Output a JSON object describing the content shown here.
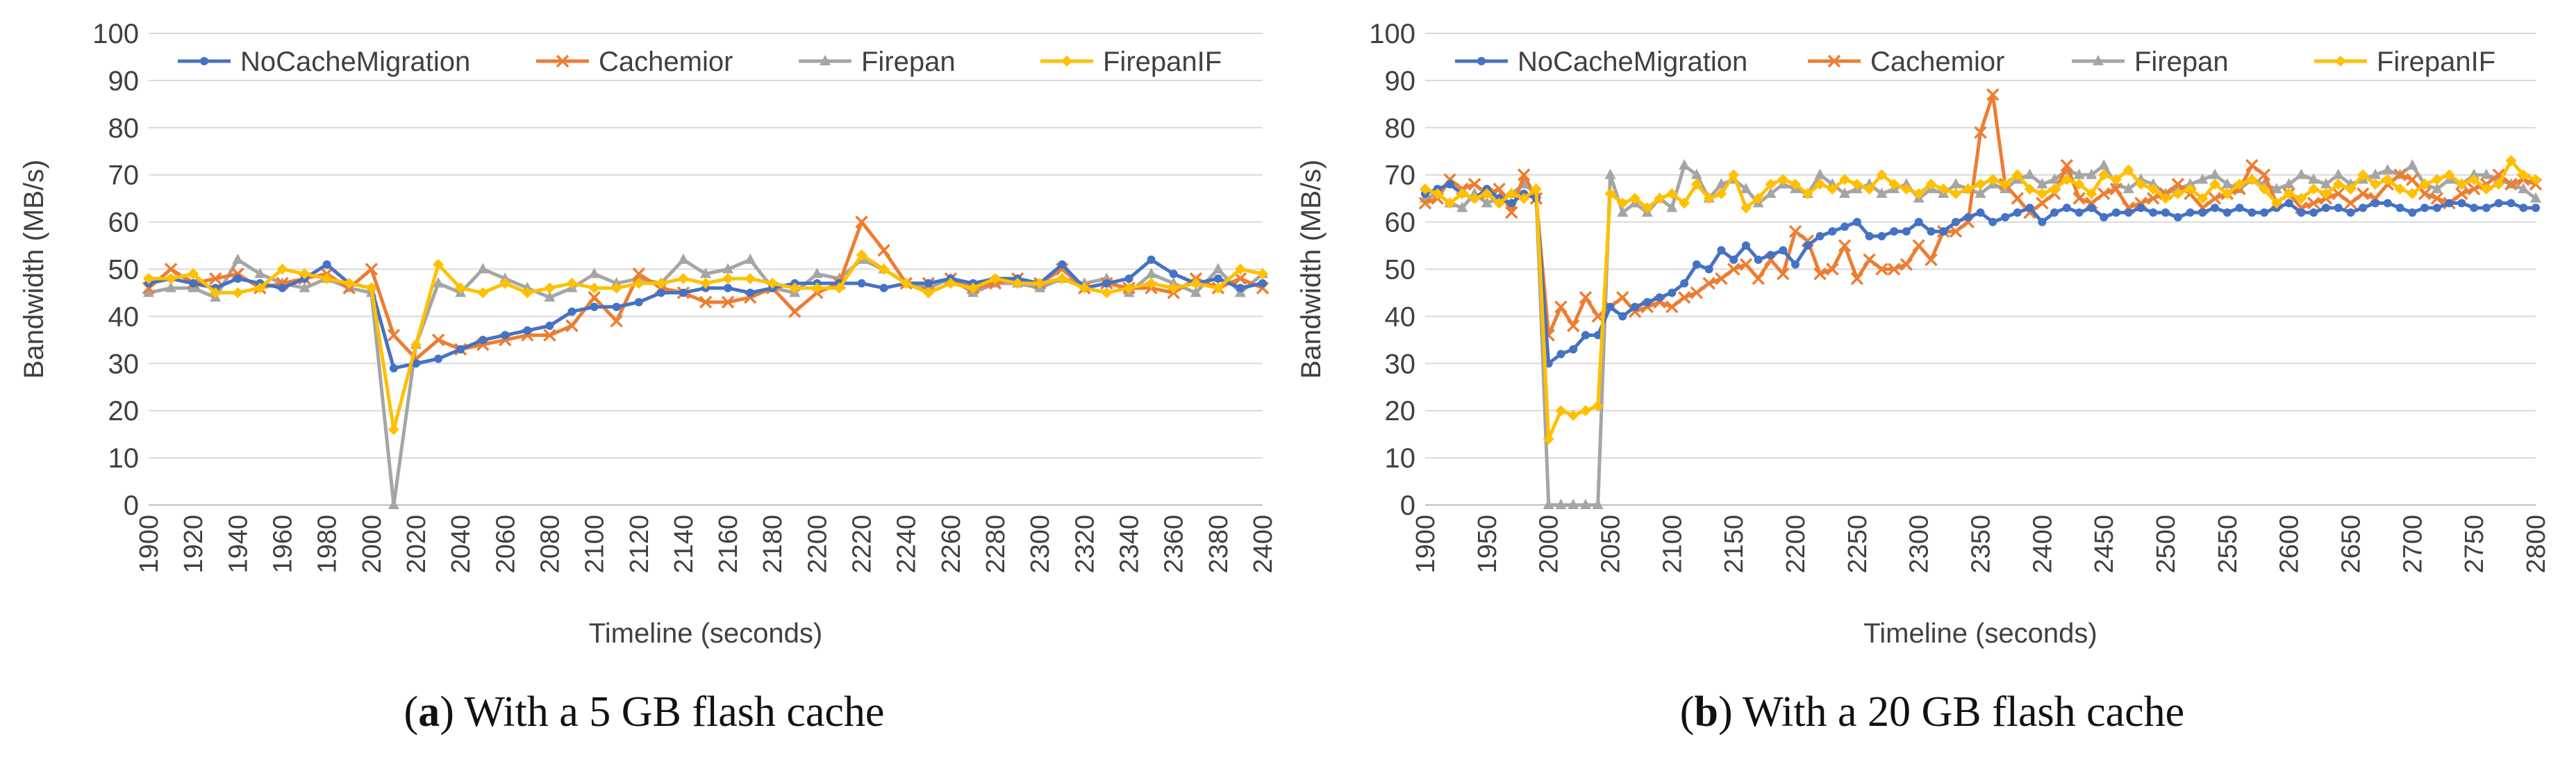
{
  "chart_data": [
    {
      "type": "line",
      "panel_id": "a",
      "caption": {
        "letter": "a",
        "text": "With a 5 GB flash cache"
      },
      "title": "",
      "xlabel": "Timeline (seconds)",
      "ylabel": "Bandwidth (MB/s)",
      "xlim": [
        1900,
        2400
      ],
      "ylim": [
        0,
        100
      ],
      "yticks": [
        "0",
        "10",
        "20",
        "30",
        "40",
        "50",
        "60",
        "70",
        "80",
        "90",
        "100"
      ],
      "xticks": [
        "1900",
        "1920",
        "1940",
        "1960",
        "1980",
        "2000",
        "2020",
        "2040",
        "2060",
        "2080",
        "2100",
        "2120",
        "2140",
        "2160",
        "2180",
        "2200",
        "2220",
        "2240",
        "2260",
        "2280",
        "2300",
        "2320",
        "2340",
        "2360",
        "2380",
        "2400"
      ],
      "grid": "horizontal",
      "legend": "top",
      "x_start": 1900,
      "x_step": 10,
      "series": [
        {
          "name": "NoCacheMigration",
          "color": "#4472C4",
          "marker": "circle",
          "values": [
            47,
            48,
            47,
            46,
            48,
            47,
            46,
            48,
            51,
            47,
            46,
            29,
            30,
            31,
            33,
            35,
            36,
            37,
            38,
            41,
            42,
            42,
            43,
            45,
            45,
            46,
            46,
            45,
            46,
            47,
            47,
            47,
            47,
            46,
            47,
            47,
            48,
            47,
            48,
            48,
            47,
            51,
            46,
            47,
            48,
            52,
            49,
            47,
            48,
            46,
            47
          ]
        },
        {
          "name": "Cachemior",
          "color": "#ED7D31",
          "marker": "x",
          "values": [
            46,
            50,
            47,
            48,
            49,
            46,
            47,
            48,
            49,
            46,
            50,
            36,
            31,
            35,
            33,
            34,
            35,
            36,
            36,
            38,
            44,
            39,
            49,
            46,
            45,
            43,
            43,
            44,
            46,
            41,
            45,
            47,
            60,
            54,
            47,
            47,
            48,
            46,
            47,
            48,
            47,
            50,
            46,
            47,
            46,
            46,
            45,
            48,
            46,
            48,
            46
          ]
        },
        {
          "name": "Firepan",
          "color": "#A5A5A5",
          "marker": "triangle",
          "values": [
            45,
            46,
            46,
            44,
            52,
            49,
            47,
            46,
            48,
            46,
            45,
            0,
            34,
            47,
            45,
            50,
            48,
            46,
            44,
            46,
            49,
            47,
            48,
            47,
            52,
            49,
            50,
            52,
            46,
            45,
            49,
            48,
            52,
            50,
            47,
            46,
            48,
            45,
            47,
            47,
            46,
            48,
            47,
            48,
            45,
            49,
            47,
            45,
            50,
            45,
            49
          ]
        },
        {
          "name": "FirepanIF",
          "color": "#FFC000",
          "marker": "diamond",
          "values": [
            48,
            48,
            49,
            45,
            45,
            46,
            50,
            49,
            48,
            47,
            46,
            16,
            34,
            51,
            46,
            45,
            47,
            45,
            46,
            47,
            46,
            46,
            47,
            47,
            48,
            47,
            48,
            48,
            47,
            46,
            46,
            46,
            53,
            50,
            47,
            45,
            47,
            46,
            48,
            47,
            47,
            48,
            46,
            45,
            46,
            47,
            46,
            47,
            46,
            50,
            49
          ]
        }
      ]
    },
    {
      "type": "line",
      "panel_id": "b",
      "caption": {
        "letter": "b",
        "text": "With a 20 GB flash cache"
      },
      "title": "",
      "xlabel": "Timeline (seconds)",
      "ylabel": "Bandwidth (MB/s)",
      "xlim": [
        1900,
        2800
      ],
      "ylim": [
        0,
        100
      ],
      "yticks": [
        "0",
        "10",
        "20",
        "30",
        "40",
        "50",
        "60",
        "70",
        "80",
        "90",
        "100"
      ],
      "xticks": [
        "1900",
        "1950",
        "2000",
        "2050",
        "2100",
        "2150",
        "2200",
        "2250",
        "2300",
        "2350",
        "2400",
        "2450",
        "2500",
        "2550",
        "2600",
        "2650",
        "2700",
        "2750",
        "2800"
      ],
      "grid": "horizontal",
      "legend": "top",
      "x_start": 1900,
      "x_step": 10,
      "series": [
        {
          "name": "NoCacheMigration",
          "color": "#4472C4",
          "marker": "circle",
          "values": [
            66,
            67,
            68,
            66,
            65,
            67,
            65,
            64,
            66,
            65,
            30,
            32,
            33,
            36,
            36,
            42,
            40,
            42,
            43,
            44,
            45,
            47,
            51,
            50,
            54,
            52,
            55,
            52,
            53,
            54,
            51,
            55,
            57,
            58,
            59,
            60,
            57,
            57,
            58,
            58,
            60,
            58,
            58,
            60,
            61,
            62,
            60,
            61,
            62,
            63,
            60,
            62,
            63,
            62,
            63,
            61,
            62,
            62,
            63,
            62,
            62,
            61,
            62,
            62,
            63,
            62,
            63,
            62,
            62,
            63,
            64,
            62,
            62,
            63,
            63,
            62,
            63,
            64,
            64,
            63,
            62,
            63,
            63,
            64,
            64,
            63,
            63,
            64,
            64,
            63,
            63
          ]
        },
        {
          "name": "Cachemior",
          "color": "#ED7D31",
          "marker": "x",
          "values": [
            64,
            65,
            69,
            67,
            68,
            66,
            67,
            62,
            70,
            65,
            36,
            42,
            38,
            44,
            40,
            42,
            44,
            41,
            42,
            43,
            42,
            44,
            45,
            47,
            48,
            50,
            51,
            48,
            52,
            49,
            58,
            56,
            49,
            50,
            55,
            48,
            52,
            50,
            50,
            51,
            55,
            52,
            58,
            58,
            60,
            79,
            87,
            68,
            65,
            62,
            64,
            66,
            72,
            65,
            64,
            66,
            67,
            63,
            64,
            65,
            66,
            68,
            66,
            63,
            65,
            66,
            67,
            72,
            70,
            64,
            66,
            63,
            64,
            65,
            66,
            64,
            66,
            65,
            68,
            70,
            69,
            66,
            65,
            64,
            66,
            67,
            68,
            70,
            68,
            69,
            68
          ]
        },
        {
          "name": "Firepan",
          "color": "#A5A5A5",
          "marker": "triangle",
          "values": [
            65,
            66,
            64,
            63,
            66,
            64,
            65,
            66,
            68,
            66,
            0,
            0,
            0,
            0,
            0,
            70,
            62,
            64,
            62,
            65,
            63,
            72,
            70,
            65,
            68,
            69,
            67,
            64,
            66,
            68,
            67,
            66,
            70,
            68,
            66,
            67,
            68,
            66,
            67,
            68,
            65,
            67,
            66,
            68,
            67,
            66,
            68,
            67,
            69,
            70,
            68,
            69,
            71,
            70,
            70,
            72,
            68,
            67,
            69,
            68,
            66,
            67,
            68,
            69,
            70,
            68,
            67,
            69,
            68,
            67,
            68,
            70,
            69,
            68,
            70,
            68,
            69,
            70,
            71,
            70,
            72,
            68,
            67,
            69,
            68,
            70,
            70,
            69,
            68,
            67,
            65
          ]
        },
        {
          "name": "FirepanIF",
          "color": "#FFC000",
          "marker": "diamond",
          "values": [
            67,
            66,
            64,
            66,
            65,
            66,
            64,
            66,
            65,
            67,
            14,
            20,
            19,
            20,
            21,
            66,
            64,
            65,
            63,
            65,
            66,
            64,
            68,
            65,
            66,
            70,
            63,
            65,
            68,
            69,
            68,
            66,
            68,
            67,
            69,
            68,
            67,
            70,
            68,
            67,
            66,
            68,
            67,
            66,
            67,
            68,
            69,
            68,
            70,
            67,
            66,
            67,
            69,
            68,
            66,
            70,
            69,
            71,
            68,
            67,
            65,
            66,
            67,
            65,
            68,
            66,
            68,
            69,
            67,
            64,
            66,
            65,
            67,
            66,
            68,
            67,
            70,
            68,
            69,
            67,
            66,
            68,
            69,
            70,
            68,
            69,
            67,
            68,
            73,
            70,
            69
          ]
        }
      ]
    }
  ]
}
